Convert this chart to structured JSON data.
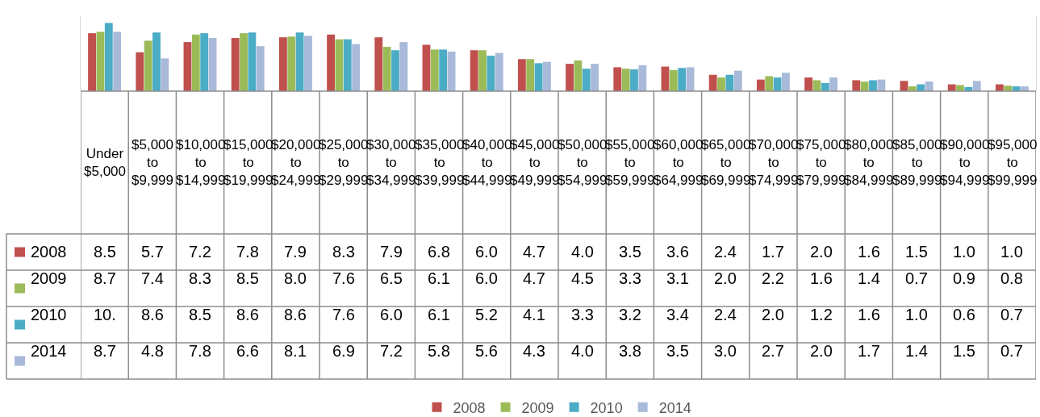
{
  "chart_data": {
    "type": "bar",
    "categories": [
      "Under $5,000",
      "$5,000 to $9,999",
      "$10,000 to $14,999",
      "$15,000 to $19,999",
      "$20,000 to $24,999",
      "$25,000 to $29,999",
      "$30,000 to $34,999",
      "$35,000 to $39,999",
      "$40,000 to $44,999",
      "$45,000 to $49,999",
      "$50,000 to $54,999",
      "$55,000 to $59,999",
      "$60,000 to $64,999",
      "$65,000 to $69,999",
      "$70,000 to $74,999",
      "$75,000 to $79,999",
      "$80,000 to $84,999",
      "$85,000 to $89,999",
      "$90,000 to $94,999",
      "$95,000 to $99,999"
    ],
    "series": [
      {
        "name": "2008",
        "color": "#c0504d",
        "values": [
          8.5,
          5.7,
          7.2,
          7.8,
          7.9,
          8.3,
          7.9,
          6.8,
          6.0,
          4.7,
          4.0,
          3.5,
          3.6,
          2.4,
          1.7,
          2.0,
          1.6,
          1.5,
          1.0,
          1.0
        ],
        "value_labels": [
          "8.5",
          "5.7",
          "7.2",
          "7.8",
          "7.9",
          "8.3",
          "7.9",
          "6.8",
          "6.0",
          "4.7",
          "4.0",
          "3.5",
          "3.6",
          "2.4",
          "1.7",
          "2.0",
          "1.6",
          "1.5",
          "1.0",
          "1.0"
        ]
      },
      {
        "name": "2009",
        "color": "#9bbb59",
        "values": [
          8.7,
          7.4,
          8.3,
          8.5,
          8.0,
          7.6,
          6.5,
          6.1,
          6.0,
          4.7,
          4.5,
          3.3,
          3.1,
          2.0,
          2.2,
          1.6,
          1.4,
          0.7,
          0.9,
          0.8
        ],
        "value_labels": [
          "8.7",
          "7.4",
          "8.3",
          "8.5",
          "8.0",
          "7.6",
          "6.5",
          "6.1",
          "6.0",
          "4.7",
          "4.5",
          "3.3",
          "3.1",
          "2.0",
          "2.2",
          "1.6",
          "1.4",
          "0.7",
          "0.9",
          "0.8"
        ]
      },
      {
        "name": "2010",
        "color": "#4bacc6",
        "values": [
          10.0,
          8.6,
          8.5,
          8.6,
          8.6,
          7.6,
          6.0,
          6.1,
          5.2,
          4.1,
          3.3,
          3.2,
          3.4,
          2.4,
          2.0,
          1.2,
          1.6,
          1.0,
          0.6,
          0.7
        ],
        "value_labels": [
          "10.",
          "8.6",
          "8.5",
          "8.6",
          "8.6",
          "7.6",
          "6.0",
          "6.1",
          "5.2",
          "4.1",
          "3.3",
          "3.2",
          "3.4",
          "2.4",
          "2.0",
          "1.2",
          "1.6",
          "1.0",
          "0.6",
          "0.7"
        ]
      },
      {
        "name": "2014",
        "color": "#a9b9d9",
        "values": [
          8.7,
          4.8,
          7.8,
          6.6,
          8.1,
          6.9,
          7.2,
          5.8,
          5.6,
          4.3,
          4.0,
          3.8,
          3.5,
          3.0,
          2.7,
          2.0,
          1.7,
          1.4,
          1.5,
          0.7
        ],
        "value_labels": [
          "8.7",
          "4.8",
          "7.8",
          "6.6",
          "8.1",
          "6.9",
          "7.2",
          "5.8",
          "5.6",
          "4.3",
          "4.0",
          "3.8",
          "3.5",
          "3.0",
          "2.7",
          "2.0",
          "1.7",
          "1.4",
          "1.5",
          "0.7"
        ]
      }
    ],
    "ylim": [
      0,
      11
    ],
    "legend": "bottom",
    "tick_labels": "x"
  }
}
